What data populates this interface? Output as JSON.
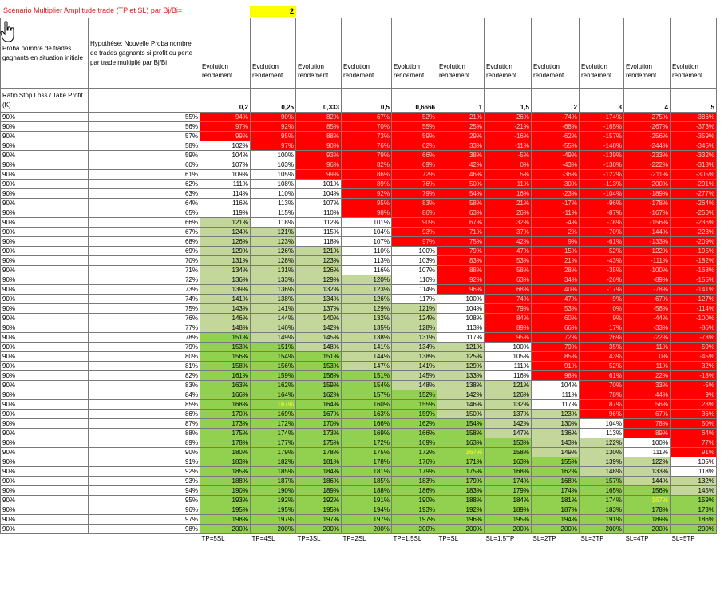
{
  "title": "Scénario Multiplier Amplitude trade (TP et SL) par Bj/Bi=",
  "multiplier": "2",
  "header": {
    "col_a_label": "Proba nombre de trades gagnants en situation initiale",
    "col_b_label": "Hypothèse: Nouvelle Proba nombre de trades gagnants si profit ou perte par trade multiplié par Bj/Bi",
    "ratio_label": "Ratio Stop Loss / Take Profit (K)",
    "columns": [
      {
        "label": "Evolution rendement",
        "ratio": "0,2"
      },
      {
        "label": "Evolution rendement",
        "ratio": "0,25"
      },
      {
        "label": "Evolution rendement",
        "ratio": "0,333"
      },
      {
        "label": "Evolution rendement",
        "ratio": "0,5"
      },
      {
        "label": "Evolution rendement",
        "ratio": "0,6666"
      },
      {
        "label": "Evolution rendement",
        "ratio": "1"
      },
      {
        "label": "Evolution rendement",
        "ratio": "1,5"
      },
      {
        "label": "Evolution rendement",
        "ratio": "2"
      },
      {
        "label": "Evolution rendement",
        "ratio": "3"
      },
      {
        "label": "Evolution rendement",
        "ratio": "4"
      },
      {
        "label": "Evolution rendement",
        "ratio": "5"
      }
    ]
  },
  "rows": [
    [
      "90%",
      "55%",
      "94%",
      "90%",
      "82%",
      "67%",
      "52%",
      "21%",
      "-26%",
      "-74%",
      "-174%",
      "-275%",
      "-386%"
    ],
    [
      "90%",
      "56%",
      "97%",
      "92%",
      "85%",
      "70%",
      "55%",
      "25%",
      "-21%",
      "-68%",
      "-165%",
      "-267%",
      "-373%"
    ],
    [
      "90%",
      "57%",
      "99%",
      "95%",
      "88%",
      "73%",
      "59%",
      "29%",
      "-16%",
      "-62%",
      "-157%",
      "-256%",
      "-359%"
    ],
    [
      "90%",
      "58%",
      "102%",
      "97%",
      "90%",
      "76%",
      "62%",
      "33%",
      "-11%",
      "-55%",
      "-148%",
      "-244%",
      "-345%"
    ],
    [
      "90%",
      "59%",
      "104%",
      "100%",
      "93%",
      "79%",
      "66%",
      "38%",
      "-5%",
      "-49%",
      "-139%",
      "-233%",
      "-332%"
    ],
    [
      "90%",
      "60%",
      "107%",
      "103%",
      "96%",
      "82%",
      "69%",
      "42%",
      "0%",
      "-43%",
      "-130%",
      "-222%",
      "-318%"
    ],
    [
      "90%",
      "61%",
      "109%",
      "105%",
      "99%",
      "86%",
      "72%",
      "46%",
      "5%",
      "-36%",
      "-122%",
      "-211%",
      "-305%"
    ],
    [
      "90%",
      "62%",
      "111%",
      "108%",
      "101%",
      "89%",
      "76%",
      "50%",
      "11%",
      "-30%",
      "-113%",
      "-200%",
      "-291%"
    ],
    [
      "90%",
      "63%",
      "114%",
      "110%",
      "104%",
      "92%",
      "79%",
      "54%",
      "16%",
      "-23%",
      "-104%",
      "-189%",
      "-277%"
    ],
    [
      "90%",
      "64%",
      "116%",
      "113%",
      "107%",
      "95%",
      "83%",
      "58%",
      "21%",
      "-17%",
      "-96%",
      "-178%",
      "-264%"
    ],
    [
      "90%",
      "65%",
      "119%",
      "115%",
      "110%",
      "98%",
      "86%",
      "63%",
      "26%",
      "-11%",
      "-87%",
      "-167%",
      "-250%"
    ],
    [
      "90%",
      "66%",
      "121%",
      "118%",
      "112%",
      "101%",
      "90%",
      "67%",
      "32%",
      "-4%",
      "-78%",
      "-156%",
      "-236%"
    ],
    [
      "90%",
      "67%",
      "124%",
      "121%",
      "115%",
      "104%",
      "93%",
      "71%",
      "37%",
      "2%",
      "-70%",
      "-144%",
      "-223%"
    ],
    [
      "90%",
      "68%",
      "126%",
      "123%",
      "118%",
      "107%",
      "97%",
      "75%",
      "42%",
      "9%",
      "-61%",
      "-133%",
      "-209%"
    ],
    [
      "90%",
      "69%",
      "129%",
      "126%",
      "121%",
      "110%",
      "100%",
      "79%",
      "47%",
      "15%",
      "-52%",
      "-122%",
      "-195%"
    ],
    [
      "90%",
      "70%",
      "131%",
      "128%",
      "123%",
      "113%",
      "103%",
      "83%",
      "53%",
      "21%",
      "-43%",
      "-111%",
      "-182%"
    ],
    [
      "90%",
      "71%",
      "134%",
      "131%",
      "126%",
      "116%",
      "107%",
      "88%",
      "58%",
      "28%",
      "-35%",
      "-100%",
      "-168%"
    ],
    [
      "90%",
      "72%",
      "136%",
      "133%",
      "129%",
      "120%",
      "110%",
      "92%",
      "63%",
      "34%",
      "-26%",
      "-89%",
      "-155%"
    ],
    [
      "90%",
      "73%",
      "139%",
      "136%",
      "132%",
      "123%",
      "114%",
      "96%",
      "68%",
      "40%",
      "-17%",
      "-78%",
      "-141%"
    ],
    [
      "90%",
      "74%",
      "141%",
      "138%",
      "134%",
      "126%",
      "117%",
      "100%",
      "74%",
      "47%",
      "-9%",
      "-67%",
      "-127%"
    ],
    [
      "90%",
      "75%",
      "143%",
      "141%",
      "137%",
      "129%",
      "121%",
      "104%",
      "79%",
      "53%",
      "0%",
      "-56%",
      "-114%"
    ],
    [
      "90%",
      "76%",
      "146%",
      "144%",
      "140%",
      "132%",
      "124%",
      "108%",
      "84%",
      "60%",
      "9%",
      "-44%",
      "-100%"
    ],
    [
      "90%",
      "77%",
      "148%",
      "146%",
      "142%",
      "135%",
      "128%",
      "113%",
      "89%",
      "66%",
      "17%",
      "-33%",
      "-86%"
    ],
    [
      "90%",
      "78%",
      "151%",
      "149%",
      "145%",
      "138%",
      "131%",
      "117%",
      "95%",
      "72%",
      "26%",
      "-22%",
      "-73%"
    ],
    [
      "90%",
      "79%",
      "153%",
      "151%",
      "148%",
      "141%",
      "134%",
      "121%",
      "100%",
      "79%",
      "35%",
      "-11%",
      "-59%"
    ],
    [
      "90%",
      "80%",
      "156%",
      "154%",
      "151%",
      "144%",
      "138%",
      "125%",
      "105%",
      "85%",
      "43%",
      "0%",
      "-45%"
    ],
    [
      "90%",
      "81%",
      "158%",
      "156%",
      "153%",
      "147%",
      "141%",
      "129%",
      "111%",
      "91%",
      "52%",
      "11%",
      "-32%"
    ],
    [
      "90%",
      "82%",
      "161%",
      "159%",
      "156%",
      "151%",
      "145%",
      "133%",
      "116%",
      "98%",
      "61%",
      "22%",
      "-18%"
    ],
    [
      "90%",
      "83%",
      "163%",
      "162%",
      "159%",
      "154%",
      "148%",
      "138%",
      "121%",
      "104%",
      "70%",
      "33%",
      "-5%"
    ],
    [
      "90%",
      "84%",
      "166%",
      "164%",
      "162%",
      "157%",
      "152%",
      "142%",
      "126%",
      "111%",
      "78%",
      "44%",
      "9%"
    ],
    [
      "90%",
      "85%",
      "168%",
      "167%",
      "164%",
      "160%",
      "155%",
      "146%",
      "132%",
      "117%",
      "87%",
      "56%",
      "23%"
    ],
    [
      "90%",
      "86%",
      "170%",
      "169%",
      "167%",
      "163%",
      "159%",
      "150%",
      "137%",
      "123%",
      "96%",
      "67%",
      "36%"
    ],
    [
      "90%",
      "87%",
      "173%",
      "172%",
      "170%",
      "166%",
      "162%",
      "154%",
      "142%",
      "130%",
      "104%",
      "78%",
      "50%"
    ],
    [
      "90%",
      "88%",
      "175%",
      "174%",
      "173%",
      "169%",
      "166%",
      "158%",
      "147%",
      "136%",
      "113%",
      "89%",
      "64%"
    ],
    [
      "90%",
      "89%",
      "178%",
      "177%",
      "175%",
      "172%",
      "169%",
      "163%",
      "153%",
      "143%",
      "122%",
      "100%",
      "77%"
    ],
    [
      "90%",
      "90%",
      "180%",
      "179%",
      "178%",
      "175%",
      "172%",
      "167%",
      "158%",
      "149%",
      "130%",
      "111%",
      "91%"
    ],
    [
      "90%",
      "91%",
      "183%",
      "182%",
      "181%",
      "178%",
      "176%",
      "171%",
      "163%",
      "155%",
      "139%",
      "122%",
      "105%"
    ],
    [
      "90%",
      "92%",
      "185%",
      "185%",
      "184%",
      "181%",
      "179%",
      "175%",
      "168%",
      "162%",
      "148%",
      "133%",
      "118%"
    ],
    [
      "90%",
      "93%",
      "188%",
      "187%",
      "186%",
      "185%",
      "183%",
      "179%",
      "174%",
      "168%",
      "157%",
      "144%",
      "132%"
    ],
    [
      "90%",
      "94%",
      "190%",
      "190%",
      "189%",
      "188%",
      "186%",
      "183%",
      "179%",
      "174%",
      "165%",
      "156%",
      "145%"
    ],
    [
      "90%",
      "95%",
      "193%",
      "192%",
      "192%",
      "191%",
      "190%",
      "188%",
      "184%",
      "181%",
      "174%",
      "167%",
      "159%"
    ],
    [
      "90%",
      "96%",
      "195%",
      "195%",
      "195%",
      "194%",
      "193%",
      "192%",
      "189%",
      "187%",
      "183%",
      "178%",
      "173%"
    ],
    [
      "90%",
      "97%",
      "198%",
      "197%",
      "197%",
      "197%",
      "197%",
      "196%",
      "195%",
      "194%",
      "191%",
      "189%",
      "186%"
    ],
    [
      "90%",
      "98%",
      "200%",
      "200%",
      "200%",
      "200%",
      "200%",
      "200%",
      "200%",
      "200%",
      "200%",
      "200%",
      "200%"
    ]
  ],
  "footer": [
    "TP=5SL",
    "TP=4SL",
    "TP=3SL",
    "TP=2SL",
    "TP=1,5SL",
    "TP=SL",
    "SL=1,5TP",
    "SL=2TP",
    "SL=3TP",
    "SL=4TP",
    "SL=5TP"
  ],
  "colors": {
    "red": "#ff0000",
    "light_green": "#c4d79b",
    "green": "#92d050",
    "highlight": "#ffff00"
  },
  "icons": {
    "cursor": "hand-pointer-icon"
  }
}
